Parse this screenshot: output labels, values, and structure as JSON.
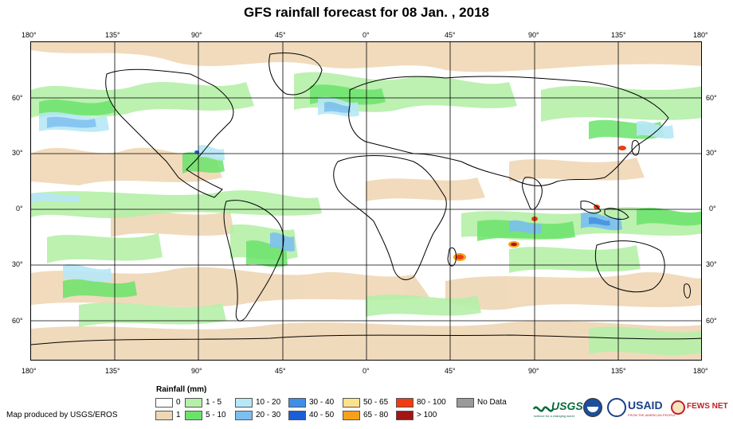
{
  "title": "GFS rainfall forecast for 08 Jan. , 2018",
  "top_ticks": [
    "180°",
    "135°",
    "90°",
    "45°",
    "0°",
    "45°",
    "90°",
    "135°",
    "180°"
  ],
  "bottom_ticks": [
    "180°",
    "135°",
    "90°",
    "45°",
    "0°",
    "45°",
    "90°",
    "135°",
    "180°"
  ],
  "lat_ticks": [
    "60°",
    "30°",
    "0°",
    "30°",
    "60°"
  ],
  "legend": {
    "title": "Rainfall (mm)",
    "items": [
      {
        "label": "0",
        "color": "#ffffff"
      },
      {
        "label": "1",
        "color": "#efd7b5"
      },
      {
        "label": "1 - 5",
        "color": "#b5f0a8"
      },
      {
        "label": "5 - 10",
        "color": "#6be36b"
      },
      {
        "label": "10 - 20",
        "color": "#b7e8f7"
      },
      {
        "label": "20 - 30",
        "color": "#7cc0f0"
      },
      {
        "label": "30 - 40",
        "color": "#3f8ee8"
      },
      {
        "label": "40 - 50",
        "color": "#1a5fd6"
      },
      {
        "label": "50 - 65",
        "color": "#fde28c"
      },
      {
        "label": "65 - 80",
        "color": "#f4a21c"
      },
      {
        "label": "80 - 100",
        "color": "#f03c10"
      },
      {
        "label": "> 100",
        "color": "#a31414"
      },
      {
        "label": "No Data",
        "color": "#9a9a9a"
      }
    ]
  },
  "credit": "Map produced by USGS/EROS",
  "logos": {
    "usgs": "USGS",
    "usgs_tag": "science for a changing world",
    "usaid": "USAID",
    "usaid_tag": "FROM THE AMERICAN PEOPLE",
    "fews": "FEWS NET"
  }
}
